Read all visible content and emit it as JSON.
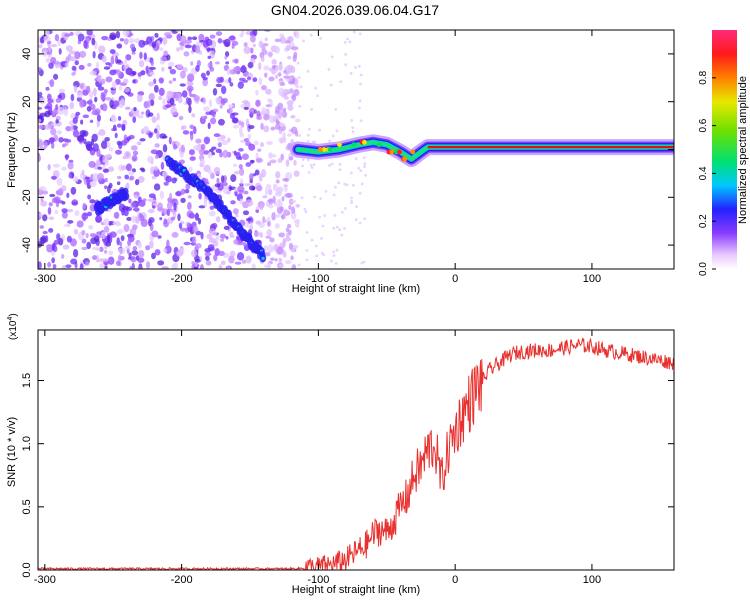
{
  "title": "GN04.2026.039.06.04.G17",
  "chart_data": [
    {
      "type": "heatmap",
      "xlabel": "Height of straight line (km)",
      "ylabel": "Frequency (Hz)",
      "xlim": [
        -305,
        160
      ],
      "ylim": [
        -50,
        50
      ],
      "xticks": [
        -300,
        -200,
        -100,
        0,
        100
      ],
      "yticks": [
        -40,
        -20,
        0,
        20,
        40
      ],
      "colorbar": {
        "label": "Normalized spectral amplitude",
        "range": [
          0,
          1
        ],
        "ticks": [
          "0.0",
          "0.2",
          "0.4",
          "0.6",
          "0.8"
        ]
      },
      "features": {
        "noise_region_x": [
          -305,
          -115
        ],
        "diagonal_streak": [
          [
            -210,
            -5
          ],
          [
            -180,
            -18
          ],
          [
            -160,
            -32
          ],
          [
            -140,
            -45
          ]
        ],
        "left_streak": [
          [
            -262,
            -25
          ],
          [
            -240,
            -18
          ]
        ],
        "carrier_track": [
          [
            -115,
            0
          ],
          [
            -100,
            -1
          ],
          [
            -85,
            0
          ],
          [
            -70,
            2
          ],
          [
            -60,
            3
          ],
          [
            -50,
            2
          ],
          [
            -40,
            -1
          ],
          [
            -32,
            -4
          ],
          [
            -25,
            -1
          ],
          [
            -20,
            1
          ],
          [
            0,
            1
          ],
          [
            50,
            1
          ],
          [
            100,
            1
          ],
          [
            160,
            1
          ]
        ]
      }
    },
    {
      "type": "line",
      "xlabel": "Height of straight line (km)",
      "ylabel": "SNR (10 * v/v)",
      "multiplier": "(x10",
      "multiplier_exp": "4",
      "multiplier_close": ")",
      "xlim": [
        -305,
        160
      ],
      "ylim": [
        0,
        1.9
      ],
      "xticks": [
        -300,
        -200,
        -100,
        0,
        100
      ],
      "yticks": [
        "0.0",
        "0.5",
        "1.0",
        "1.5"
      ],
      "color": "#e8312e",
      "series": [
        {
          "x": [
            -305,
            -120,
            -100,
            -90,
            -80,
            -75,
            -70,
            -65,
            -60,
            -55,
            -50,
            -45,
            -40,
            -35,
            -30,
            -25,
            -20,
            -15,
            -10,
            -5,
            0,
            5,
            10,
            15,
            20,
            25,
            30,
            35,
            40,
            45,
            50,
            60,
            70,
            80,
            90,
            100,
            110,
            120,
            130,
            140,
            150,
            160
          ],
          "values": [
            0.01,
            0.01,
            0.02,
            0.04,
            0.08,
            0.12,
            0.16,
            0.2,
            0.28,
            0.32,
            0.3,
            0.38,
            0.5,
            0.58,
            0.75,
            0.82,
            0.95,
            1.0,
            0.7,
            0.95,
            1.1,
            1.22,
            1.32,
            1.42,
            1.5,
            1.58,
            1.62,
            1.66,
            1.7,
            1.72,
            1.73,
            1.74,
            1.74,
            1.76,
            1.78,
            1.77,
            1.74,
            1.72,
            1.7,
            1.68,
            1.66,
            1.64
          ]
        }
      ]
    }
  ]
}
